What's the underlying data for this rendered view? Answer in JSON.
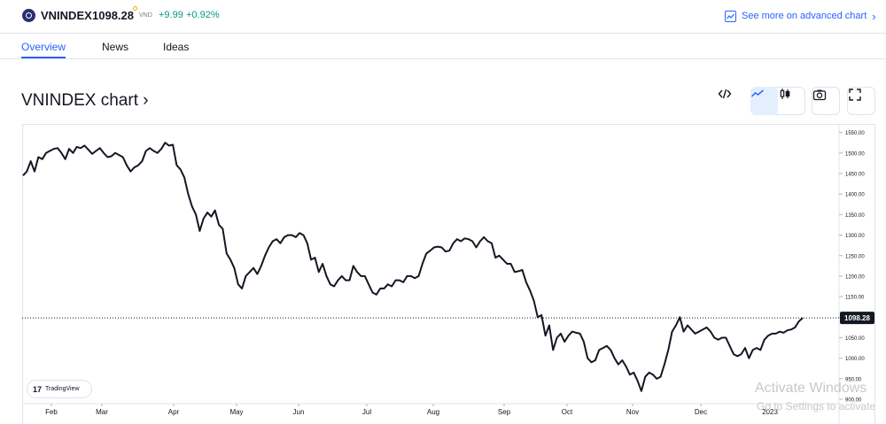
{
  "header": {
    "symbol": "VNINDEX",
    "separator": "·",
    "price": "1098.28",
    "currency": "VND",
    "change": "+9.99",
    "change_pct": "+0.92%",
    "advanced_link": "See more on advanced chart",
    "positive_color": "#089981",
    "accent_color": "#2962ff"
  },
  "tabs": [
    {
      "label": "Overview",
      "active": true
    },
    {
      "label": "News",
      "active": false
    },
    {
      "label": "Ideas",
      "active": false
    }
  ],
  "chart_title": "VNINDEX chart ›",
  "toolbar": {
    "icons": [
      "embed-icon",
      "line-chart-icon",
      "candlestick-icon",
      "camera-icon",
      "fullscreen-icon"
    ],
    "active": "line-chart-icon"
  },
  "branding": "TradingView",
  "chart_data": {
    "type": "line",
    "series": [
      {
        "values": [
          1445,
          1455,
          1480,
          1455,
          1490,
          1485,
          1500,
          1505,
          1510,
          1512,
          1500,
          1485,
          1510,
          1500,
          1515,
          1512,
          1518,
          1508,
          1498,
          1505,
          1512,
          1500,
          1490,
          1492,
          1500,
          1495,
          1490,
          1470,
          1455,
          1465,
          1470,
          1480,
          1505,
          1512,
          1505,
          1500,
          1510,
          1525,
          1518,
          1520,
          1470,
          1460,
          1440,
          1400,
          1370,
          1350,
          1310,
          1340,
          1355,
          1345,
          1360,
          1325,
          1315,
          1255,
          1240,
          1220,
          1180,
          1170,
          1200,
          1210,
          1220,
          1205,
          1225,
          1250,
          1270,
          1285,
          1290,
          1280,
          1295,
          1300,
          1300,
          1295,
          1305,
          1300,
          1280,
          1240,
          1245,
          1210,
          1230,
          1200,
          1180,
          1175,
          1190,
          1200,
          1190,
          1190,
          1225,
          1210,
          1200,
          1200,
          1180,
          1160,
          1155,
          1170,
          1170,
          1180,
          1175,
          1190,
          1190,
          1185,
          1200,
          1200,
          1195,
          1200,
          1230,
          1255,
          1262,
          1270,
          1272,
          1270,
          1260,
          1262,
          1280,
          1290,
          1285,
          1292,
          1290,
          1285,
          1270,
          1285,
          1295,
          1285,
          1280,
          1245,
          1250,
          1240,
          1230,
          1230,
          1210,
          1212,
          1215,
          1185,
          1165,
          1140,
          1100,
          1105,
          1055,
          1080,
          1020,
          1050,
          1060,
          1040,
          1055,
          1065,
          1062,
          1060,
          1040,
          1000,
          990,
          995,
          1020,
          1025,
          1030,
          1020,
          1000,
          985,
          995,
          980,
          960,
          965,
          945,
          920,
          955,
          965,
          960,
          950,
          955,
          985,
          1020,
          1065,
          1080,
          1100,
          1065,
          1080,
          1070,
          1060,
          1065,
          1070,
          1075,
          1065,
          1050,
          1045,
          1050,
          1050,
          1030,
          1010,
          1005,
          1010,
          1025,
          1000,
          1020,
          1025,
          1020,
          1045,
          1055,
          1060,
          1060,
          1065,
          1062,
          1068,
          1070,
          1075,
          1090,
          1098.28
        ]
      }
    ],
    "x_labels": [
      "Feb",
      "Mar",
      "Apr",
      "May",
      "Jun",
      "Jul",
      "Aug",
      "Sep",
      "Oct",
      "Nov",
      "Dec",
      "2023"
    ],
    "y_ticks": [
      900,
      950,
      1000,
      1050,
      1100,
      1150,
      1200,
      1250,
      1300,
      1350,
      1400,
      1450,
      1500,
      1550
    ],
    "y_tick_labels": [
      "900.00",
      "950.00",
      "1000.00",
      "1050.00",
      "1100.00",
      "1150.00",
      "1200.00",
      "1250.00",
      "1300.00",
      "1350.00",
      "1400.00",
      "1450.00",
      "1500.00",
      "1550.00"
    ],
    "last_value_label": "1098.28",
    "ylim": [
      898,
      1560
    ],
    "line_color": "#131722",
    "grid": false
  },
  "watermark": {
    "line1": "Activate Windows",
    "line2": "Go to Settings to activate"
  }
}
